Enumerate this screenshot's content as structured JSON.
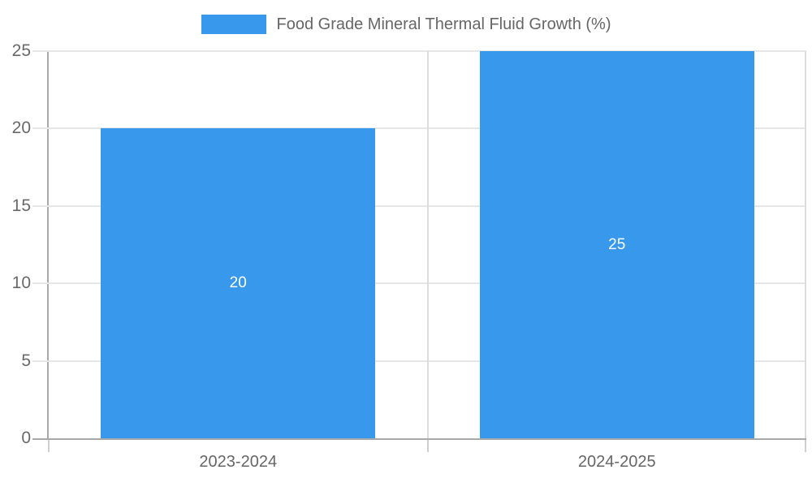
{
  "legend": {
    "label": "Food Grade Mineral Thermal Fluid Growth (%)"
  },
  "colors": {
    "bar": "#3899ec",
    "grid": "#e6e6e6",
    "axis": "#a9a9a9",
    "tick_text": "#696969",
    "category_text": "#666666",
    "bar_label_text": "#ffffff"
  },
  "chart_data": {
    "type": "bar",
    "title": "Food Grade Mineral Thermal Fluid Growth (%)",
    "categories": [
      "2023-2024",
      "2024-2025"
    ],
    "series": [
      {
        "name": "Food Grade Mineral Thermal Fluid Growth (%)",
        "values": [
          20,
          25
        ]
      }
    ],
    "values": [
      20,
      25
    ],
    "data_labels": [
      "20",
      "25"
    ],
    "xlabel": "",
    "ylabel": "",
    "ylim": [
      0,
      25
    ],
    "yticks": [
      0,
      5,
      10,
      15,
      20,
      25
    ],
    "grid": true,
    "legend_position": "top",
    "bar_color": "#3899ec"
  }
}
